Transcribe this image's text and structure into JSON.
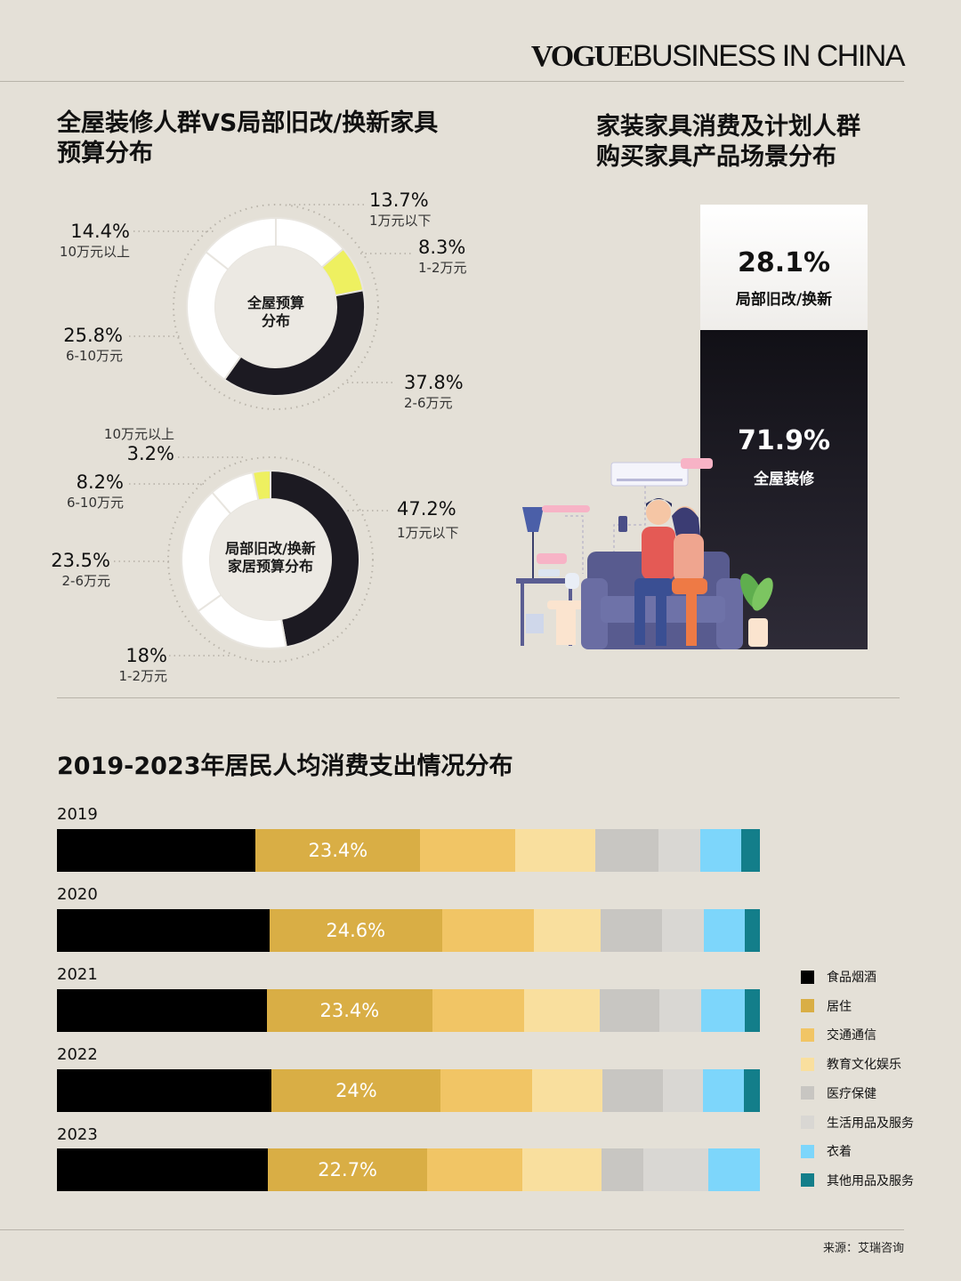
{
  "brand": {
    "vogue": "VOGUE",
    "rest": "BUSINESS IN CHINA"
  },
  "section1": {
    "title_line1": "全屋装修人群VS局部旧改/换新家具",
    "title_line2": "预算分布"
  },
  "section2": {
    "title_line1": "家装家具消费及计划人群",
    "title_line2": "购买家具产品场景分布"
  },
  "section3": {
    "title": "2019-2023年居民人均消费支出情况分布"
  },
  "source": "来源：艾瑞咨询",
  "colors": {
    "background": "#e4e0d7",
    "dark": "#1c1a22",
    "yellow": "#eef060",
    "white": "#ffffff"
  },
  "donut1": {
    "center_line1": "全屋预算",
    "center_line2": "分布",
    "slices": [
      {
        "value": 13.7,
        "pct_label": "13.7%",
        "label": "1万元以下",
        "color": "#ffffff"
      },
      {
        "value": 8.3,
        "pct_label": "8.3%",
        "label": "1-2万元",
        "color": "#eef060"
      },
      {
        "value": 37.8,
        "pct_label": "37.8%",
        "label": "2-6万元",
        "color": "#1c1a22"
      },
      {
        "value": 25.8,
        "pct_label": "25.8%",
        "label": "6-10万元",
        "color": "#ffffff"
      },
      {
        "value": 14.4,
        "pct_label": "14.4%",
        "label": "10万元以上",
        "color": "#ffffff"
      }
    ]
  },
  "donut2": {
    "center_line1": "局部旧改/换新",
    "center_line2": "家居预算分布",
    "slices": [
      {
        "value": 47.2,
        "pct_label": "47.2%",
        "label": "1万元以下",
        "color": "#1c1a22"
      },
      {
        "value": 18,
        "pct_label": "18%",
        "label": "1-2万元",
        "color": "#ffffff"
      },
      {
        "value": 23.5,
        "pct_label": "23.5%",
        "label": "2-6万元",
        "color": "#ffffff"
      },
      {
        "value": 8.2,
        "pct_label": "8.2%",
        "label": "6-10万元",
        "color": "#ffffff"
      },
      {
        "value": 3.2,
        "pct_label": "3.2%",
        "label": "10万元以上",
        "color": "#eef060"
      }
    ]
  },
  "stacked_bar": {
    "top": {
      "value": 28.1,
      "pct_label": "28.1%",
      "label": "局部旧改/换新"
    },
    "bottom": {
      "value": 71.9,
      "pct_label": "71.9%",
      "label": "全屋装修"
    }
  },
  "chart_data": [
    {
      "type": "pie",
      "title": "全屋预算分布",
      "categories": [
        "1万元以下",
        "1-2万元",
        "2-6万元",
        "6-10万元",
        "10万元以上"
      ],
      "values": [
        13.7,
        8.3,
        37.8,
        25.8,
        14.4
      ]
    },
    {
      "type": "pie",
      "title": "局部旧改/换新家居预算分布",
      "categories": [
        "1万元以下",
        "1-2万元",
        "2-6万元",
        "6-10万元",
        "10万元以上"
      ],
      "values": [
        47.2,
        18,
        23.5,
        8.2,
        3.2
      ]
    },
    {
      "type": "bar",
      "title": "家装家具消费及计划人群购买家具产品场景分布",
      "categories": [
        "局部旧改/换新",
        "全屋装修"
      ],
      "values": [
        28.1,
        71.9
      ]
    },
    {
      "type": "bar",
      "title": "2019-2023年居民人均消费支出情况分布",
      "stacked": true,
      "normalized": true,
      "categories": [
        "2019",
        "2020",
        "2021",
        "2022",
        "2023"
      ],
      "series": [
        {
          "name": "食品烟酒",
          "color": "#000000",
          "values": [
            28.2,
            30.2,
            29.8,
            30.5,
            30.0
          ]
        },
        {
          "name": "居住",
          "color": "#d9ae45",
          "values": [
            23.4,
            24.6,
            23.4,
            24.0,
            22.7
          ]
        },
        {
          "name": "交通通信",
          "color": "#f1c565",
          "values": [
            13.5,
            13.0,
            13.0,
            13.0,
            13.5
          ]
        },
        {
          "name": "教育文化娱乐",
          "color": "#f9df9e",
          "values": [
            11.3,
            9.6,
            10.8,
            10.0,
            11.3
          ]
        },
        {
          "name": "医疗保健",
          "color": "#c8c6c2",
          "values": [
            9.0,
            8.7,
            8.5,
            8.5,
            5.9
          ]
        },
        {
          "name": "生活用品及服务",
          "color": "#d9d7d3",
          "values": [
            5.9,
            5.9,
            5.9,
            5.7,
            9.3
          ]
        },
        {
          "name": "衣着",
          "color": "#7dd6fb",
          "values": [
            5.9,
            5.9,
            6.2,
            5.8,
            7.3
          ]
        },
        {
          "name": "其他用品及服务",
          "color": "#137e8a",
          "values": [
            2.6,
            2.1,
            2.1,
            2.3,
            0
          ]
        }
      ]
    }
  ]
}
